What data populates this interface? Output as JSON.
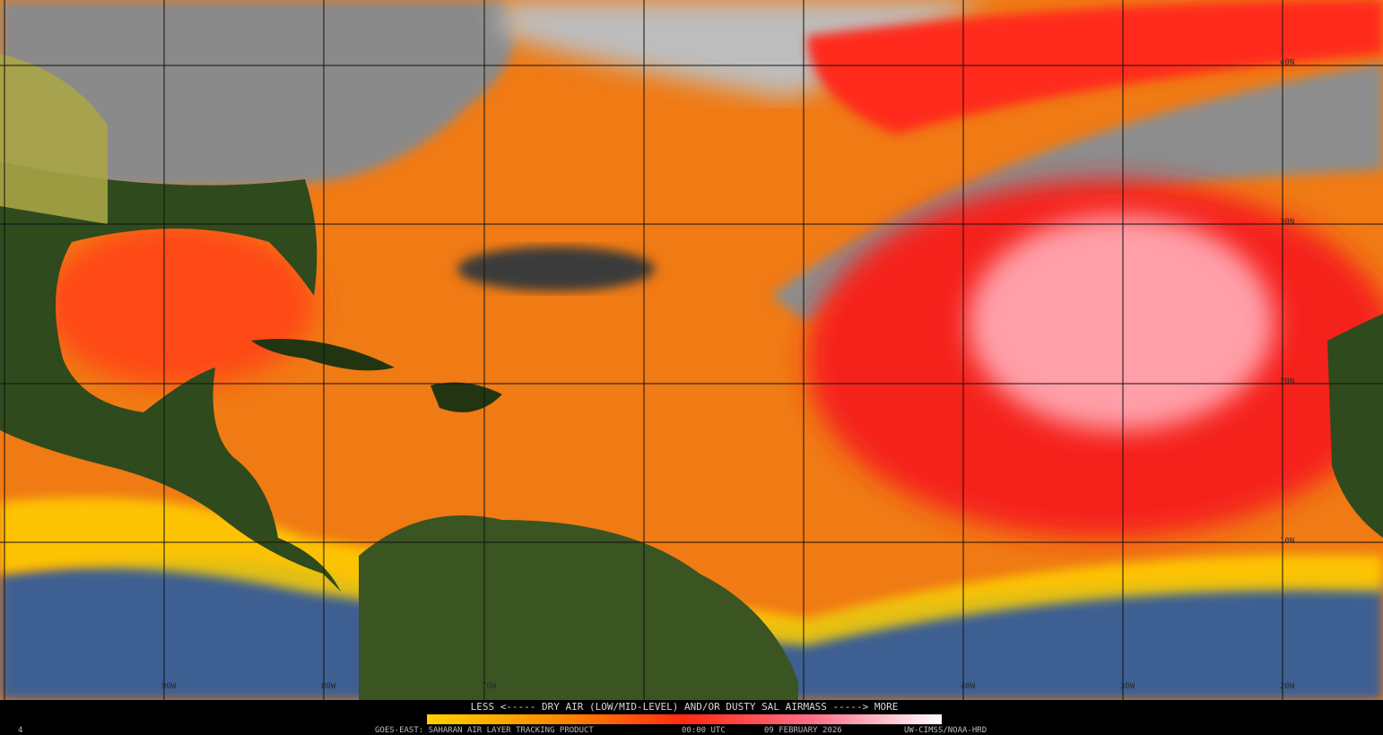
{
  "map": {
    "lat_labels": [
      "40N",
      "30N",
      "20N",
      "10N"
    ],
    "lon_labels": [
      "90W",
      "80W",
      "70W",
      "40W",
      "30W",
      "20W"
    ],
    "legend": "LESS <----- DRY AIR (LOW/MID-LEVEL) AND/OR DUSTY SAL AIRMASS -----> MORE",
    "footer": {
      "frame": "4",
      "product": "GOES-EAST: SAHARAN AIR LAYER TRACKING PRODUCT",
      "time": "00:00 UTC",
      "date": "09 FEBRUARY 2026",
      "credit": "UW-CIMSS/NOAA-HRD"
    }
  }
}
